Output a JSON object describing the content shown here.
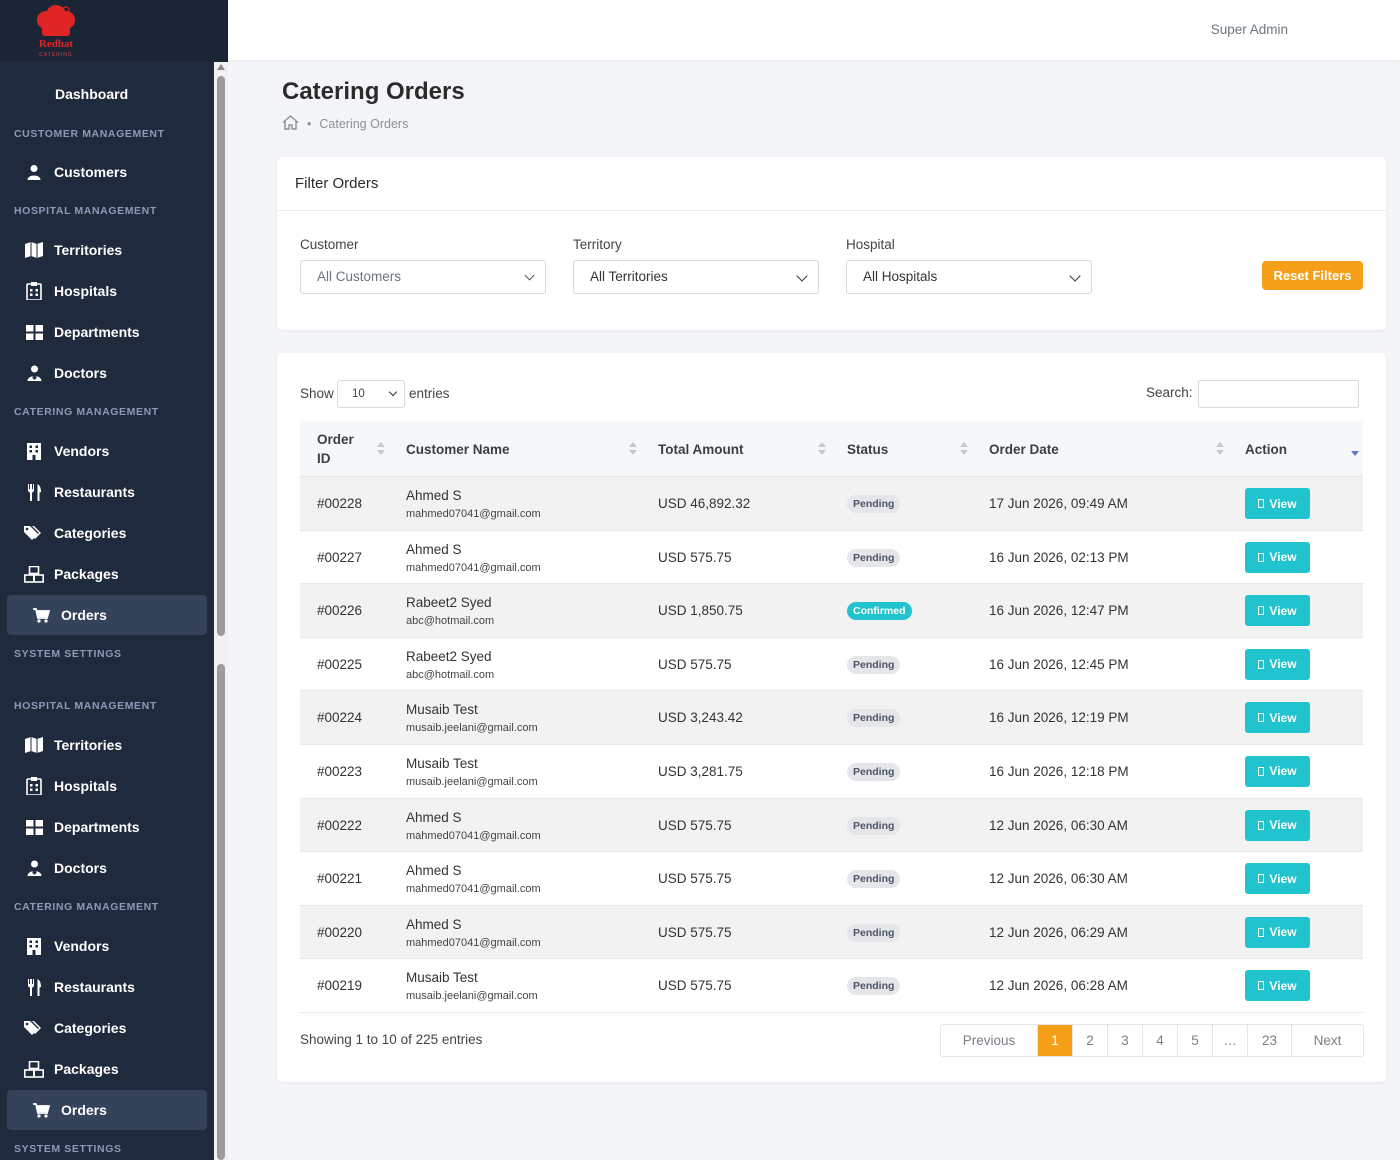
{
  "brand": {
    "logo_text": "Redhat",
    "logo_sub": "CATERING",
    "color": "#e02424"
  },
  "user": {
    "name": "Super Admin"
  },
  "sidebar": {
    "dashboard": "Dashboard",
    "sections": {
      "customer": "CUSTOMER MANAGEMENT",
      "hospital": "HOSPITAL MANAGEMENT",
      "catering": "CATERING MANAGEMENT",
      "system": "SYSTEM SETTINGS"
    },
    "items": {
      "customers": "Customers",
      "territories": "Territories",
      "hospitals": "Hospitals",
      "departments": "Departments",
      "doctors": "Doctors",
      "vendors": "Vendors",
      "restaurants": "Restaurants",
      "categories": "Categories",
      "packages": "Packages",
      "orders": "Orders"
    }
  },
  "page": {
    "title": "Catering Orders",
    "breadcrumb": "Catering Orders"
  },
  "filters": {
    "title": "Filter Orders",
    "customer_label": "Customer",
    "customer_value": "All Customers",
    "territory_label": "Territory",
    "territory_value": "All Territories",
    "hospital_label": "Hospital",
    "hospital_value": "All Hospitals",
    "reset_label": "Reset Filters"
  },
  "table": {
    "show_label": "Show",
    "page_length": "10",
    "entries_label": "entries",
    "search_label": "Search:",
    "search_value": "",
    "headers": {
      "order_id_1": "Order",
      "order_id_2": "ID",
      "customer": "Customer Name",
      "amount": "Total Amount",
      "status": "Status",
      "date": "Order Date",
      "action": "Action"
    },
    "view_label": "View",
    "rows": [
      {
        "id": "#00228",
        "name": "Ahmed S",
        "email": "mahmed07041@gmail.com",
        "amount": "USD 46,892.32",
        "status": "Pending",
        "date": "17 Jun 2026, 09:49 AM"
      },
      {
        "id": "#00227",
        "name": "Ahmed S",
        "email": "mahmed07041@gmail.com",
        "amount": "USD 575.75",
        "status": "Pending",
        "date": "16 Jun 2026, 02:13 PM"
      },
      {
        "id": "#00226",
        "name": "Rabeet2 Syed",
        "email": "abc@hotmail.com",
        "amount": "USD 1,850.75",
        "status": "Confirmed",
        "date": "16 Jun 2026, 12:47 PM"
      },
      {
        "id": "#00225",
        "name": "Rabeet2 Syed",
        "email": "abc@hotmail.com",
        "amount": "USD 575.75",
        "status": "Pending",
        "date": "16 Jun 2026, 12:45 PM"
      },
      {
        "id": "#00224",
        "name": "Musaib Test",
        "email": "musaib.jeelani@gmail.com",
        "amount": "USD 3,243.42",
        "status": "Pending",
        "date": "16 Jun 2026, 12:19 PM"
      },
      {
        "id": "#00223",
        "name": "Musaib Test",
        "email": "musaib.jeelani@gmail.com",
        "amount": "USD 3,281.75",
        "status": "Pending",
        "date": "16 Jun 2026, 12:18 PM"
      },
      {
        "id": "#00222",
        "name": "Ahmed S",
        "email": "mahmed07041@gmail.com",
        "amount": "USD 575.75",
        "status": "Pending",
        "date": "12 Jun 2026, 06:30 AM"
      },
      {
        "id": "#00221",
        "name": "Ahmed S",
        "email": "mahmed07041@gmail.com",
        "amount": "USD 575.75",
        "status": "Pending",
        "date": "12 Jun 2026, 06:30 AM"
      },
      {
        "id": "#00220",
        "name": "Ahmed S",
        "email": "mahmed07041@gmail.com",
        "amount": "USD 575.75",
        "status": "Pending",
        "date": "12 Jun 2026, 06:29 AM"
      },
      {
        "id": "#00219",
        "name": "Musaib Test",
        "email": "musaib.jeelani@gmail.com",
        "amount": "USD 575.75",
        "status": "Pending",
        "date": "12 Jun 2026, 06:28 AM"
      }
    ],
    "info": "Showing 1 to 10 of 225 entries",
    "pagination": {
      "previous": "Previous",
      "pages": [
        "1",
        "2",
        "3",
        "4",
        "5",
        "…",
        "23"
      ],
      "current": "1",
      "next": "Next"
    }
  },
  "colors": {
    "sidebar_bg": "#1f2a3d",
    "accent_orange": "#f6a01a",
    "accent_teal": "#21c3cf"
  }
}
